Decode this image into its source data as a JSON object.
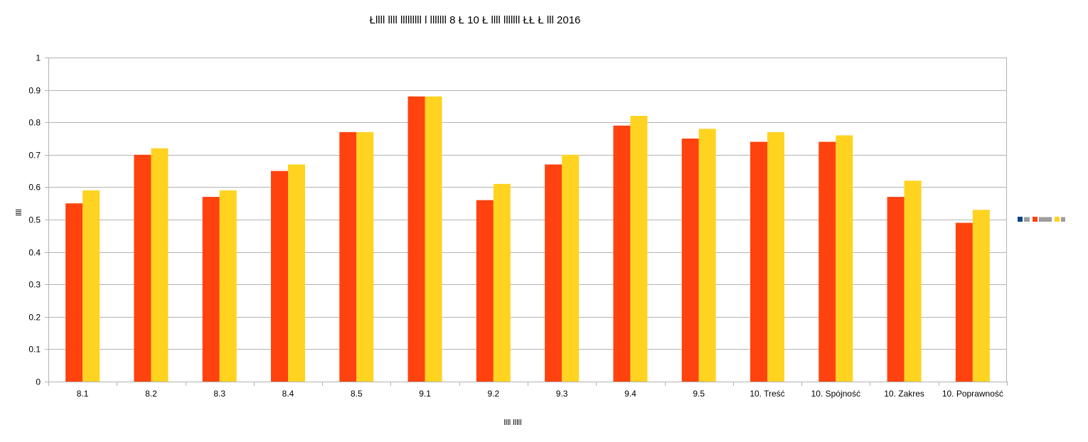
{
  "chart_data": {
    "type": "bar",
    "title": "Łllll llll lllllllll l lllllll 8 Ł 10 Ł llll lllllll ŁŁ Ł lll 2016",
    "xlabel": "llll lllll",
    "ylabel": "llll",
    "ylim": [
      0,
      1
    ],
    "ytick_step": 0.1,
    "grid": true,
    "legend_position": "right",
    "categories": [
      "8.1",
      "8.2",
      "8.3",
      "8.4",
      "8.5",
      "9.1",
      "9.2",
      "9.3",
      "9.4",
      "9.5",
      "10. Treść",
      "10. Spójność",
      "10. Zakres",
      "10. Poprawność"
    ],
    "series": [
      {
        "name": "llll",
        "color": "#004586",
        "values": [
          null,
          null,
          null,
          null,
          null,
          null,
          null,
          null,
          null,
          null,
          null,
          null,
          null,
          null
        ]
      },
      {
        "name": "lllllllll",
        "color": "#ff420e",
        "values": [
          0.55,
          0.7,
          0.57,
          0.65,
          0.77,
          0.88,
          0.56,
          0.67,
          0.79,
          0.75,
          0.74,
          0.74,
          0.57,
          0.49
        ]
      },
      {
        "name": "lll",
        "color": "#ffd320",
        "values": [
          0.59,
          0.72,
          0.59,
          0.67,
          0.77,
          0.88,
          0.61,
          0.7,
          0.82,
          0.78,
          0.77,
          0.76,
          0.62,
          0.53
        ]
      }
    ]
  }
}
